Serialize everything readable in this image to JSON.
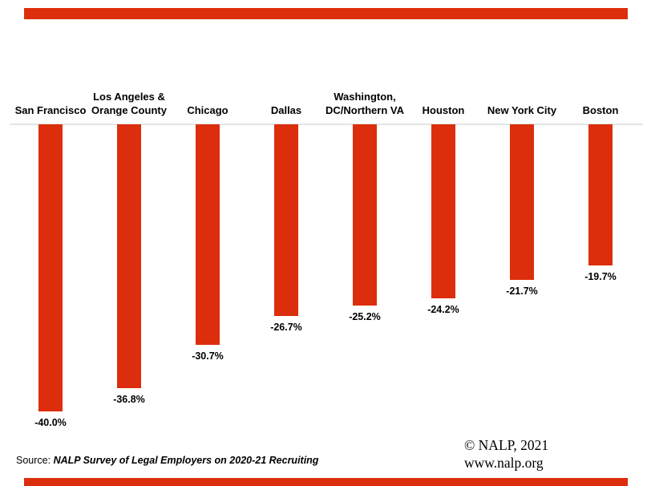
{
  "slide": {
    "accent_color": "#DC2E0C",
    "baseline_color": "#E2E6E5"
  },
  "chart_data": {
    "type": "bar",
    "orientation": "vertical",
    "categories": [
      "San Francisco",
      "Los Angeles & Orange County",
      "Chicago",
      "Dallas",
      "Washington, DC/Northern VA",
      "Houston",
      "New York City",
      "Boston"
    ],
    "category_lines": [
      [
        "San Francisco"
      ],
      [
        "Los Angeles &",
        "Orange County"
      ],
      [
        "Chicago"
      ],
      [
        "Dallas"
      ],
      [
        "Washington,",
        "DC/Northern VA"
      ],
      [
        "Houston"
      ],
      [
        "New York City"
      ],
      [
        "Boston"
      ]
    ],
    "values": [
      -40.0,
      -36.8,
      -30.7,
      -26.7,
      -25.2,
      -24.2,
      -21.7,
      -19.7
    ],
    "value_labels": [
      "-40.0%",
      "-36.8%",
      "-30.7%",
      "-26.7%",
      "-25.2%",
      "-24.2%",
      "-21.7%",
      "-19.7%"
    ],
    "bar_color": "#DC2E0C",
    "value_axis_range": [
      -45,
      0
    ],
    "gridlines": false,
    "legend": "none",
    "baseline": "zero line at top, bars extend downward",
    "title": "",
    "xlabel": "",
    "ylabel": ""
  },
  "footer": {
    "source_prefix": "Source: ",
    "source_text": "NALP Survey of Legal Employers on 2020-21 Recruiting",
    "copyright": "© NALP, 2021",
    "website": "www.nalp.org"
  }
}
